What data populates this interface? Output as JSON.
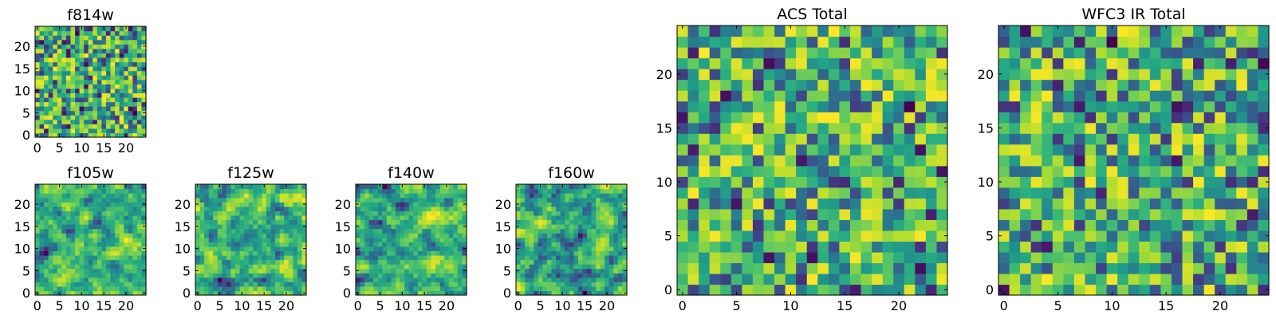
{
  "figure": {
    "description_hidden": false
  },
  "chart_data": [
    {
      "id": "f814w",
      "type": "heatmap",
      "title": "f814w",
      "grid_size": 25,
      "xlim": [
        -0.5,
        24.5
      ],
      "ylim": [
        -0.5,
        24.5
      ],
      "xticks": [
        0,
        5,
        10,
        15,
        20
      ],
      "yticks": [
        0,
        5,
        10,
        15,
        20
      ],
      "xticklabels": [
        "0",
        "5",
        "10",
        "15",
        "20"
      ],
      "yticklabels": [
        "0",
        "5",
        "10",
        "15",
        "20"
      ],
      "colormap": "viridis",
      "value_note": "random pixel noise, values approximated",
      "seed": 814
    },
    {
      "id": "f105w",
      "type": "heatmap",
      "title": "f105w",
      "grid_size": 25,
      "xlim": [
        -0.5,
        24.5
      ],
      "ylim": [
        -0.5,
        24.5
      ],
      "xticks": [
        0,
        5,
        10,
        15,
        20
      ],
      "yticks": [
        0,
        5,
        10,
        15,
        20
      ],
      "xticklabels": [
        "0",
        "5",
        "10",
        "15",
        "20"
      ],
      "yticklabels": [
        "0",
        "5",
        "10",
        "15",
        "20"
      ],
      "colormap": "viridis",
      "value_note": "smoothed pixel noise, values approximated",
      "seed": 105
    },
    {
      "id": "f125w",
      "type": "heatmap",
      "title": "f125w",
      "grid_size": 25,
      "xlim": [
        -0.5,
        24.5
      ],
      "ylim": [
        -0.5,
        24.5
      ],
      "xticks": [
        0,
        5,
        10,
        15,
        20
      ],
      "yticks": [
        0,
        5,
        10,
        15,
        20
      ],
      "xticklabels": [
        "0",
        "5",
        "10",
        "15",
        "20"
      ],
      "yticklabels": [
        "0",
        "5",
        "10",
        "15",
        "20"
      ],
      "colormap": "viridis",
      "value_note": "smoothed pixel noise, values approximated",
      "seed": 125
    },
    {
      "id": "f140w",
      "type": "heatmap",
      "title": "f140w",
      "grid_size": 25,
      "xlim": [
        -0.5,
        24.5
      ],
      "ylim": [
        -0.5,
        24.5
      ],
      "xticks": [
        0,
        5,
        10,
        15,
        20
      ],
      "yticks": [
        0,
        5,
        10,
        15,
        20
      ],
      "xticklabels": [
        "0",
        "5",
        "10",
        "15",
        "20"
      ],
      "yticklabels": [
        "0",
        "5",
        "10",
        "15",
        "20"
      ],
      "colormap": "viridis",
      "value_note": "smoothed pixel noise, values approximated",
      "seed": 140
    },
    {
      "id": "f160w",
      "type": "heatmap",
      "title": "f160w",
      "grid_size": 25,
      "xlim": [
        -0.5,
        24.5
      ],
      "ylim": [
        -0.5,
        24.5
      ],
      "xticks": [
        0,
        5,
        10,
        15,
        20
      ],
      "yticks": [
        0,
        5,
        10,
        15,
        20
      ],
      "xticklabels": [
        "0",
        "5",
        "10",
        "15",
        "20"
      ],
      "yticklabels": [
        "0",
        "5",
        "10",
        "15",
        "20"
      ],
      "colormap": "viridis",
      "value_note": "smoothed pixel noise, values approximated",
      "seed": 160
    },
    {
      "id": "acs-total",
      "type": "heatmap",
      "title": "ACS Total",
      "grid_size": 25,
      "xlim": [
        -0.5,
        24.5
      ],
      "ylim": [
        -0.5,
        24.5
      ],
      "xticks": [
        0,
        5,
        10,
        15,
        20
      ],
      "yticks": [
        0,
        5,
        10,
        15,
        20
      ],
      "xticklabels": [
        "0",
        "5",
        "10",
        "15",
        "20"
      ],
      "yticklabels": [
        "0",
        "5",
        "10",
        "15",
        "20"
      ],
      "colormap": "viridis",
      "value_note": "random pixel noise, values approximated",
      "seed": 1001
    },
    {
      "id": "wfc3-ir-total",
      "type": "heatmap",
      "title": "WFC3 IR Total",
      "grid_size": 25,
      "xlim": [
        -0.5,
        24.5
      ],
      "ylim": [
        -0.5,
        24.5
      ],
      "xticks": [
        0,
        5,
        10,
        15,
        20
      ],
      "yticks": [
        0,
        5,
        10,
        15,
        20
      ],
      "xticklabels": [
        "0",
        "5",
        "10",
        "15",
        "20"
      ],
      "yticklabels": [
        "0",
        "5",
        "10",
        "15",
        "20"
      ],
      "colormap": "viridis",
      "value_note": "random pixel noise, values approximated",
      "seed": 2002
    }
  ]
}
